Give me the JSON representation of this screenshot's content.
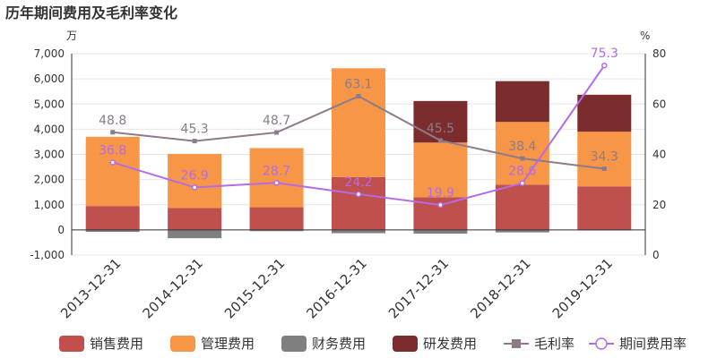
{
  "chart_data": {
    "type": "bar",
    "title": "历年期间费用及毛利率变化",
    "y_left_unit": "万",
    "y_right_unit": "%",
    "categories": [
      "2013-12-31",
      "2014-12-31",
      "2015-12-31",
      "2016-12-31",
      "2017-12-31",
      "2018-12-31",
      "2019-12-31"
    ],
    "y_left_ticks": [
      "-1,000",
      "0",
      "1,000",
      "2,000",
      "3,000",
      "4,000",
      "5,000",
      "6,000",
      "7,000"
    ],
    "y_right_ticks": [
      "0",
      "20",
      "40",
      "60",
      "80"
    ],
    "y_left_range": [
      -1000,
      7000
    ],
    "y_right_range": [
      0,
      80
    ],
    "stacked": true,
    "bar_series": [
      {
        "name": "销售费用",
        "color": "#c0504d",
        "values": [
          950,
          870,
          900,
          2100,
          1300,
          1800,
          1730
        ]
      },
      {
        "name": "管理费用",
        "color": "#f79646",
        "values": [
          2750,
          2150,
          2350,
          4320,
          2170,
          2490,
          2170
        ]
      },
      {
        "name": "财务费用",
        "color": "#7f7f7f",
        "values": [
          -80,
          -330,
          -50,
          -130,
          -150,
          -100,
          -20
        ]
      },
      {
        "name": "研发费用",
        "color": "#7b2c2c",
        "values": [
          0,
          0,
          0,
          0,
          1650,
          1620,
          1470
        ]
      }
    ],
    "line_series": [
      {
        "name": "毛利率",
        "color": "#8c7b8c",
        "marker": "square",
        "values": [
          48.8,
          45.3,
          48.7,
          63.1,
          45.5,
          38.4,
          34.3
        ],
        "labels": [
          "48.8",
          "45.3",
          "48.7",
          "63.1",
          "45.5",
          "38.4",
          "34.3"
        ]
      },
      {
        "name": "期间费用率",
        "color": "#b36ce6",
        "marker": "circle",
        "values": [
          36.8,
          26.9,
          28.7,
          24.2,
          19.9,
          28.6,
          75.3
        ],
        "labels": [
          "36.8",
          "26.9",
          "28.7",
          "24.2",
          "19.9",
          "28.6",
          "75.3"
        ]
      }
    ],
    "grid": "horizontal",
    "legend_position": "bottom"
  }
}
